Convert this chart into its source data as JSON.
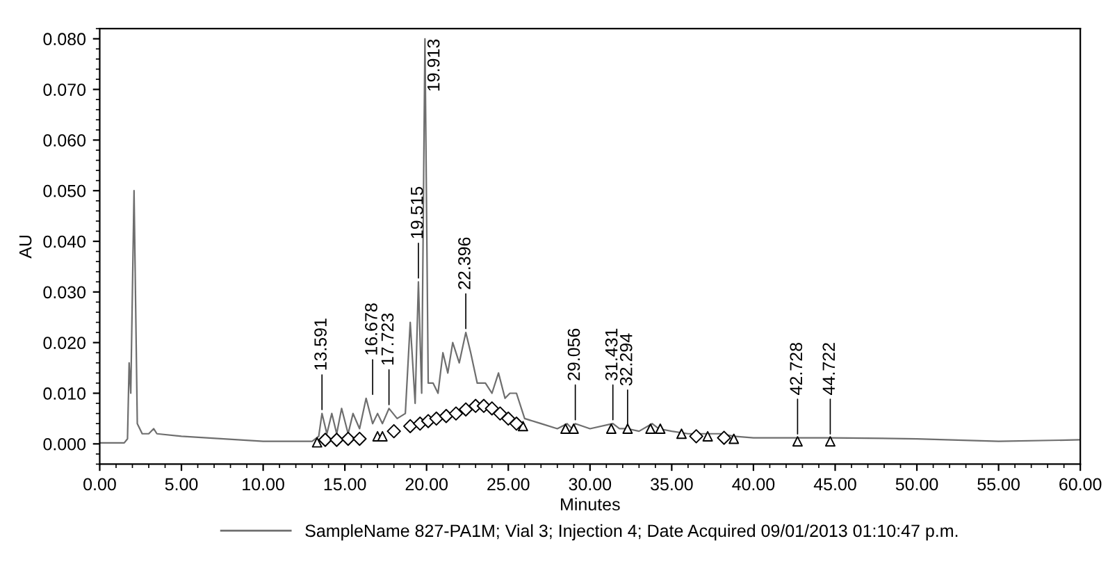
{
  "chart_data": {
    "type": "line",
    "xlabel": "Minutes",
    "ylabel": "AU",
    "xlim": [
      0,
      60
    ],
    "ylim": [
      -0.004,
      0.082
    ],
    "xticks": [
      {
        "value": 0,
        "label": "0.00"
      },
      {
        "value": 5,
        "label": "5.00"
      },
      {
        "value": 10,
        "label": "10.00"
      },
      {
        "value": 15,
        "label": "15.00"
      },
      {
        "value": 20,
        "label": "20.00"
      },
      {
        "value": 25,
        "label": "25.00"
      },
      {
        "value": 30,
        "label": "30.00"
      },
      {
        "value": 35,
        "label": "35.00"
      },
      {
        "value": 40,
        "label": "40.00"
      },
      {
        "value": 45,
        "label": "45.00"
      },
      {
        "value": 50,
        "label": "50.00"
      },
      {
        "value": 55,
        "label": "55.00"
      },
      {
        "value": 60,
        "label": "60.00"
      }
    ],
    "yticks": [
      {
        "value": 0,
        "label": "0.000"
      },
      {
        "value": 0.01,
        "label": "0.010"
      },
      {
        "value": 0.02,
        "label": "0.020"
      },
      {
        "value": 0.03,
        "label": "0.030"
      },
      {
        "value": 0.04,
        "label": "0.040"
      },
      {
        "value": 0.05,
        "label": "0.050"
      },
      {
        "value": 0.06,
        "label": "0.060"
      },
      {
        "value": 0.07,
        "label": "0.070"
      },
      {
        "value": 0.08,
        "label": "0.080"
      }
    ],
    "grid": false,
    "legend": "bottom",
    "line_style": "solid",
    "series": [
      {
        "name": "SampleName 827-PA1M; Vial 3; Injection 4; Date Acquired 09/01/2013 01:10:47 p.m.",
        "color": "#6e6e6e",
        "marker": "none",
        "x": [
          0,
          1.5,
          1.7,
          1.8,
          1.9,
          2.0,
          2.1,
          2.3,
          2.6,
          3.0,
          3.3,
          3.5,
          5,
          10,
          13,
          13.4,
          13.6,
          13.9,
          14.2,
          14.5,
          14.8,
          15.2,
          15.5,
          15.9,
          16.3,
          16.7,
          17.0,
          17.3,
          17.7,
          18.2,
          18.7,
          19.0,
          19.3,
          19.5,
          19.7,
          19.9,
          20.1,
          20.4,
          20.7,
          21.0,
          21.3,
          21.6,
          22.0,
          22.4,
          22.7,
          23.1,
          23.6,
          24.0,
          24.4,
          24.8,
          25.1,
          25.5,
          26.0,
          27.0,
          28.0,
          28.6,
          28.9,
          29.1,
          30.0,
          31.4,
          31.8,
          32.3,
          33.0,
          33.8,
          34.2,
          35.0,
          36.0,
          37.0,
          38.0,
          38.8,
          40,
          42.7,
          44.7,
          50,
          55,
          60
        ],
        "values": [
          0.0002,
          0.0002,
          0.001,
          0.016,
          0.01,
          0.03,
          0.05,
          0.004,
          0.002,
          0.002,
          0.003,
          0.002,
          0.0015,
          0.0005,
          0.0005,
          0.0015,
          0.006,
          0.002,
          0.006,
          0.002,
          0.007,
          0.002,
          0.006,
          0.003,
          0.009,
          0.004,
          0.006,
          0.004,
          0.007,
          0.005,
          0.006,
          0.024,
          0.008,
          0.032,
          0.01,
          0.08,
          0.012,
          0.012,
          0.01,
          0.018,
          0.014,
          0.02,
          0.016,
          0.022,
          0.018,
          0.012,
          0.012,
          0.01,
          0.014,
          0.009,
          0.01,
          0.01,
          0.005,
          0.004,
          0.003,
          0.004,
          0.003,
          0.004,
          0.003,
          0.004,
          0.003,
          0.003,
          0.0025,
          0.004,
          0.003,
          0.0025,
          0.002,
          0.002,
          0.002,
          0.0015,
          0.0012,
          0.0012,
          0.0012,
          0.001,
          0.0005,
          0.0008
        ]
      },
      {
        "type": "scatter",
        "color": "#000000",
        "marker": "triangle",
        "x": [
          13.3,
          17.0,
          17.3,
          25.9,
          28.5,
          29.0,
          31.3,
          32.3,
          33.7,
          34.3,
          35.6,
          37.2,
          38.8,
          42.7,
          44.7
        ],
        "values": [
          0.0003,
          0.0015,
          0.0015,
          0.0035,
          0.003,
          0.003,
          0.003,
          0.003,
          0.003,
          0.003,
          0.002,
          0.0015,
          0.001,
          0.0005,
          0.0005
        ]
      },
      {
        "type": "scatter",
        "color": "#000000",
        "marker": "diamond",
        "x": [
          13.8,
          14.5,
          15.2,
          15.9,
          18.0,
          19.0,
          19.6,
          20.1,
          20.6,
          21.2,
          21.8,
          22.4,
          23.0,
          23.5,
          24.0,
          24.5,
          25.0,
          25.5,
          36.5,
          38.2
        ],
        "values": [
          0.0008,
          0.0008,
          0.001,
          0.001,
          0.0025,
          0.0035,
          0.004,
          0.0045,
          0.005,
          0.0055,
          0.006,
          0.0068,
          0.0075,
          0.0075,
          0.007,
          0.006,
          0.005,
          0.004,
          0.0015,
          0.0012
        ]
      }
    ],
    "annotations": [
      {
        "text": "13.591",
        "x": 13.6,
        "y": 0.006
      },
      {
        "text": "16.678",
        "x": 16.7,
        "y": 0.009
      },
      {
        "text": "17.723",
        "x": 17.7,
        "y": 0.007
      },
      {
        "text": "19.515",
        "x": 19.5,
        "y": 0.032
      },
      {
        "text": "19.913",
        "x": 19.9,
        "y": 0.08
      },
      {
        "text": "22.396",
        "x": 22.4,
        "y": 0.022
      },
      {
        "text": "29.056",
        "x": 29.1,
        "y": 0.004
      },
      {
        "text": "31.431",
        "x": 31.4,
        "y": 0.004
      },
      {
        "text": "32.294",
        "x": 32.3,
        "y": 0.003
      },
      {
        "text": "42.728",
        "x": 42.7,
        "y": 0.0012
      },
      {
        "text": "44.722",
        "x": 44.7,
        "y": 0.0012
      }
    ]
  }
}
